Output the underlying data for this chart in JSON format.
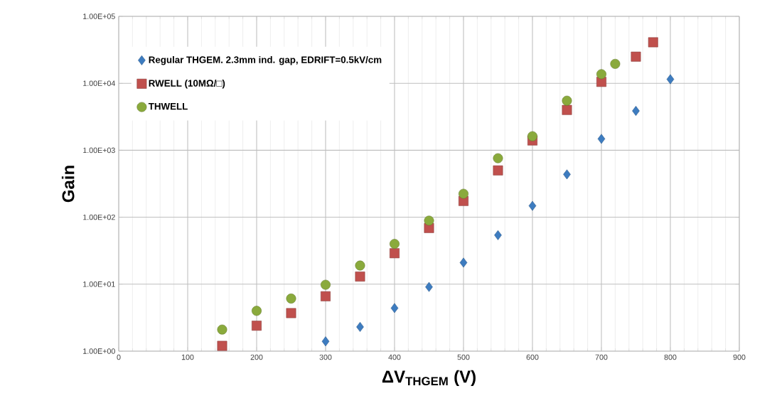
{
  "chart_data": {
    "type": "scatter",
    "xlabel": "ΔV$_{THGEM}$ (V)",
    "ylabel": "Gain",
    "log": "y",
    "grid": true,
    "legend": "top left",
    "xlim": [
      0,
      900
    ],
    "xticks": [
      0,
      100,
      200,
      300,
      400,
      500,
      600,
      700,
      800,
      900
    ],
    "ylim": [
      1,
      100000
    ],
    "yticks": [
      {
        "value": 1,
        "label": "1.00E+00"
      },
      {
        "value": 10,
        "label": "1.00E+01"
      },
      {
        "value": 100,
        "label": "1.00E+02"
      },
      {
        "value": 1000,
        "label": "1.00E+03"
      },
      {
        "value": 10000,
        "label": "1.00E+04"
      },
      {
        "value": 100000,
        "label": "1.00E+05"
      }
    ],
    "series": [
      {
        "name": "Regular THGEM. 2.3mm ind. gap, EDRIFT=0.5kV/cm",
        "color": "#3d7cc0",
        "marker": "diamond",
        "x": [
          300,
          350,
          400,
          450,
          500,
          550,
          600,
          650,
          700,
          750,
          800
        ],
        "values": [
          1.4,
          2.3,
          4.4,
          9.1,
          21,
          54,
          148,
          436,
          1480,
          3870,
          11500
        ]
      },
      {
        "name": "RWELL (10MΩ/□)",
        "color": "#c0504d",
        "marker": "square",
        "x": [
          150,
          200,
          250,
          300,
          350,
          400,
          450,
          500,
          550,
          600,
          650,
          700,
          750,
          775
        ],
        "values": [
          1.2,
          2.4,
          3.7,
          6.6,
          13,
          29,
          69,
          175,
          500,
          1400,
          4000,
          10500,
          25000,
          41000
        ]
      },
      {
        "name": "THWELL",
        "color": "#8aaa3c",
        "marker": "circle",
        "x": [
          150,
          200,
          250,
          300,
          350,
          400,
          450,
          500,
          550,
          600,
          650,
          700,
          720
        ],
        "values": [
          2.1,
          4.0,
          6.1,
          9.8,
          19,
          40,
          89,
          224,
          760,
          1620,
          5500,
          13700,
          19500
        ]
      }
    ]
  }
}
